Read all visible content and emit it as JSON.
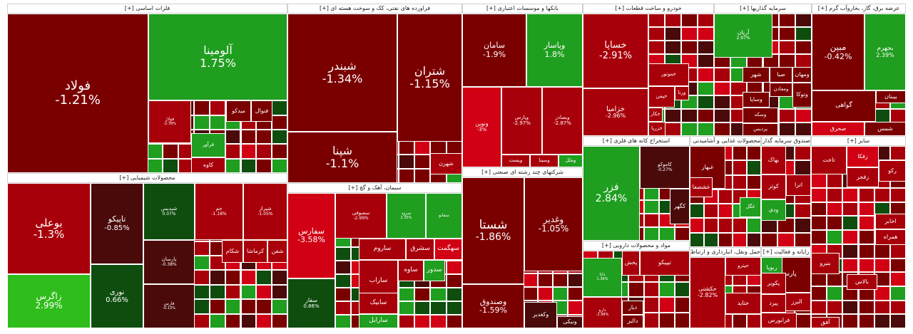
{
  "title": "Market treemap",
  "colors": {
    "deep_red": "#7a0000",
    "red": "#a8000a",
    "bright_red": "#d10014",
    "dark_maroon": "#4a0a0a",
    "dark_green": "#0f4d0f",
    "green": "#1f9e1f",
    "bright_green": "#2ebd1a"
  },
  "chart_data": {
    "type": "treemap",
    "sectors": [
      {
        "id": "base_metals",
        "label": "فلزات اساسی [+]",
        "stocks": [
          {
            "symbol": "فولاد",
            "change": "-1.21%"
          },
          {
            "symbol": "آلومینا",
            "change": "1.75%"
          },
          {
            "symbol": "فولاژ",
            "change": "-2.78%"
          },
          {
            "symbol": "میدکو",
            "change": ""
          },
          {
            "symbol": "فنوال",
            "change": ""
          },
          {
            "symbol": "فرآور",
            "change": ""
          },
          {
            "symbol": "کاوه",
            "change": ""
          }
        ]
      },
      {
        "id": "oil",
        "label": "فراورده های نفتی، کک و سوخت هسته ای [+]",
        "stocks": [
          {
            "symbol": "شبندر",
            "change": "-1.34%"
          },
          {
            "symbol": "شتران",
            "change": "-1.15%"
          },
          {
            "symbol": "شپنا",
            "change": "-1.1%"
          },
          {
            "symbol": "شهرن",
            "change": ""
          }
        ]
      },
      {
        "id": "banks",
        "label": "بانکها و موسسات اعتباری [+]",
        "stocks": [
          {
            "symbol": "سامان",
            "change": "-1.9%"
          },
          {
            "symbol": "وپاسار",
            "change": "1.8%"
          },
          {
            "symbol": "ونوین",
            "change": "-3%"
          },
          {
            "symbol": "وپارس",
            "change": "-2.97%"
          },
          {
            "symbol": "وبصادر",
            "change": "-2.87%"
          },
          {
            "symbol": "ویست",
            "change": ""
          },
          {
            "symbol": "وسینا",
            "change": ""
          },
          {
            "symbol": "وملل",
            "change": ""
          }
        ]
      },
      {
        "id": "auto",
        "label": "خودرو و ساخت قطعات [+]",
        "stocks": [
          {
            "symbol": "خساپا",
            "change": "-2.91%"
          },
          {
            "symbol": "خزامیا",
            "change": "-2.96%"
          },
          {
            "symbol": "خموتور",
            "change": ""
          },
          {
            "symbol": "خپمن",
            "change": ""
          },
          {
            "symbol": "خکار",
            "change": ""
          },
          {
            "symbol": "خزرپا",
            "change": ""
          },
          {
            "symbol": "ورنا",
            "change": ""
          }
        ]
      },
      {
        "id": "investments",
        "label": "سرمایه گذاریها [+]",
        "stocks": [
          {
            "symbol": "آریان",
            "change": "2.97%"
          },
          {
            "symbol": "شهر",
            "change": ""
          },
          {
            "symbol": "صبا",
            "change": ""
          },
          {
            "symbol": "ومهان",
            "change": ""
          },
          {
            "symbol": "وسایا",
            "change": ""
          },
          {
            "symbol": "وتوکا",
            "change": ""
          },
          {
            "symbol": "ومعادن",
            "change": ""
          },
          {
            "symbol": "وسکه",
            "change": ""
          },
          {
            "symbol": "پردیس",
            "change": ""
          }
        ]
      },
      {
        "id": "utilities",
        "label": "عرضه برق، گاز، بخاروآب گرم [+]",
        "stocks": [
          {
            "symbol": "مبین",
            "change": "-0.42%"
          },
          {
            "symbol": "بجهرم",
            "change": "2.39%"
          },
          {
            "symbol": "بیبنان",
            "change": ""
          },
          {
            "symbol": "گواهی",
            "change": ""
          },
          {
            "symbol": "صحرق",
            "change": ""
          },
          {
            "symbol": "شمس",
            "change": ""
          }
        ]
      },
      {
        "id": "petrochem",
        "label": "محصولات شیمیایی [+]",
        "stocks": [
          {
            "symbol": "بوعلی",
            "change": "-1.3%"
          },
          {
            "symbol": "تاپیکو",
            "change": "-0.85%"
          },
          {
            "symbol": "شپدیس",
            "change": "0.07%"
          },
          {
            "symbol": "جم",
            "change": "-1.18%"
          },
          {
            "symbol": "شیراز",
            "change": "-1.05%"
          },
          {
            "symbol": "زاگرس",
            "change": "2.99%"
          },
          {
            "symbol": "نوری",
            "change": "0.66%"
          },
          {
            "symbol": "پارسان",
            "change": "-0.38%"
          },
          {
            "symbol": "فارس",
            "change": "-0.13%"
          },
          {
            "symbol": "شکام",
            "change": ""
          },
          {
            "symbol": "کرماشا",
            "change": ""
          },
          {
            "symbol": "شفن",
            "change": ""
          }
        ]
      },
      {
        "id": "cement",
        "label": "سیمان، آهک و گچ [+]",
        "stocks": [
          {
            "symbol": "سفارس",
            "change": "-3.58%"
          },
          {
            "symbol": "سصوفی",
            "change": "-2.99%"
          },
          {
            "symbol": "سرود",
            "change": "2.35%"
          },
          {
            "symbol": "سفار",
            "change": "0.86%"
          },
          {
            "symbol": "ساروم",
            "change": ""
          },
          {
            "symbol": "سشرق",
            "change": ""
          },
          {
            "symbol": "سهگمت",
            "change": ""
          },
          {
            "symbol": "سفانو",
            "change": ""
          },
          {
            "symbol": "ساوه",
            "change": ""
          },
          {
            "symbol": "سدور",
            "change": ""
          },
          {
            "symbol": "ساراب",
            "change": ""
          },
          {
            "symbol": "سابیک",
            "change": ""
          },
          {
            "symbol": "سارابل",
            "change": ""
          }
        ]
      },
      {
        "id": "holdings",
        "label": "شرکتهای چند رشته ای صنعتی [+]",
        "stocks": [
          {
            "symbol": "شستا",
            "change": "-1.86%"
          },
          {
            "symbol": "وغدیر",
            "change": "-1.05%"
          },
          {
            "symbol": "وصندوق",
            "change": "-1.59%"
          },
          {
            "symbol": "وکغدیر",
            "change": ""
          },
          {
            "symbol": "ونیکی",
            "change": ""
          }
        ]
      },
      {
        "id": "mining",
        "label": "استخراج کانه های فلزی [+]",
        "stocks": [
          {
            "symbol": "فزر",
            "change": "2.84%"
          },
          {
            "symbol": "کاموکو",
            "change": "-0.27%"
          },
          {
            "symbol": "کگهر",
            "change": ""
          }
        ]
      },
      {
        "id": "pharma",
        "label": "مواد و محصولات دارویی [+]",
        "stocks": [
          {
            "symbol": "تیپیکو",
            "change": ""
          },
          {
            "symbol": "پخش",
            "change": ""
          },
          {
            "symbol": "دانا",
            "change": "1.36%"
          },
          {
            "symbol": "دارو",
            "change": "-2.98%"
          },
          {
            "symbol": "دیار",
            "change": ""
          },
          {
            "symbol": "دالبر",
            "change": ""
          }
        ]
      },
      {
        "id": "food",
        "label": "محصولات غذایی و آشامیدنی [+]",
        "stocks": [
          {
            "symbol": "غبهار",
            "change": ""
          },
          {
            "symbol": "غشصفا",
            "change": ""
          },
          {
            "symbol": "غگل",
            "change": ""
          }
        ]
      },
      {
        "id": "funds",
        "label": "صندوق سرمایه گذاری قابل معامله [+]",
        "stocks": [
          {
            "symbol": "بهاک",
            "change": ""
          },
          {
            "symbol": "کوثر",
            "change": ""
          },
          {
            "symbol": "ودی",
            "change": ""
          },
          {
            "symbol": "اترا",
            "change": ""
          }
        ]
      },
      {
        "id": "telecom",
        "label": "حمل ونقل، انبارداری و ارتباط [+]",
        "stocks": [
          {
            "symbol": "حکشتی",
            "change": "-2.82%"
          },
          {
            "symbol": "حتاید",
            "change": ""
          },
          {
            "symbol": "حپترو",
            "change": ""
          }
        ]
      },
      {
        "id": "software",
        "label": "رایانه و فعالیت [+]",
        "stocks": [
          {
            "symbol": "پارسیان",
            "change": ""
          },
          {
            "symbol": "البرز",
            "change": ""
          },
          {
            "symbol": "ربوپا",
            "change": ""
          },
          {
            "symbol": "پکویر",
            "change": ""
          },
          {
            "symbol": "پیرد",
            "change": ""
          },
          {
            "symbol": "فرابورس",
            "change": ""
          }
        ]
      },
      {
        "id": "misc",
        "label": "سایر [+]",
        "stocks": [
          {
            "symbol": "تاخت",
            "change": ""
          },
          {
            "symbol": "زفکا",
            "change": ""
          },
          {
            "symbol": "رکو",
            "change": ""
          },
          {
            "symbol": "زفجر",
            "change": ""
          },
          {
            "symbol": "اخابر",
            "change": ""
          },
          {
            "symbol": "همراه",
            "change": ""
          },
          {
            "symbol": "بالاس",
            "change": ""
          },
          {
            "symbol": "آفق",
            "change": ""
          },
          {
            "symbol": "بتیرو",
            "change": ""
          }
        ]
      }
    ]
  }
}
